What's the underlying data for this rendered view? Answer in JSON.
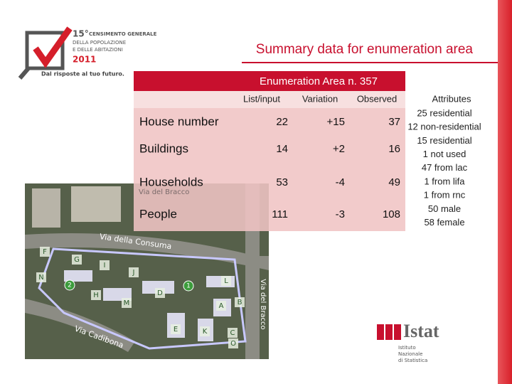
{
  "logo": {
    "number": "15°",
    "lines": [
      "CENSIMENTO GENERALE",
      "DELLA POPOLAZIONE",
      "E DELLE ABITAZIONI"
    ],
    "year": "2011",
    "slogan": "Dal risposte al tuo futuro."
  },
  "title": "Summary data for enumeration area",
  "table": {
    "caption": "Enumeration Area n. 357",
    "columns": [
      "List/input",
      "Variation",
      "Observed",
      "Attributes"
    ],
    "rows": [
      {
        "label": "House number",
        "values": [
          "22",
          "+15",
          "37"
        ],
        "attributes": [
          "25 residential",
          "12 non-residential"
        ]
      },
      {
        "label": "Buildings",
        "values": [
          "14",
          "+2",
          "16"
        ],
        "attributes": [
          "15 residential",
          "1 not used"
        ]
      },
      {
        "label": "Households",
        "values": [
          "53",
          "-4",
          "49"
        ],
        "attributes": [
          "47 from lac",
          "1 from lifa",
          "1 from rnc"
        ]
      },
      {
        "label": "People",
        "values": [
          "111",
          "-3",
          "108"
        ],
        "attributes": [
          "50 male",
          "58 female"
        ]
      }
    ]
  },
  "map": {
    "streets": [
      "Via del Bracco",
      "Via della Consuma",
      "Via del Bracco",
      "Via Cadibona"
    ],
    "areas": [
      "F",
      "G",
      "I",
      "J",
      "N",
      "H",
      "M",
      "D",
      "L",
      "A",
      "B",
      "E",
      "K",
      "C",
      "O"
    ],
    "points": [
      "2",
      "1"
    ]
  },
  "istat": {
    "name": "Istat",
    "subtitle": [
      "Istituto",
      "Nazionale",
      "di Statistica"
    ]
  }
}
